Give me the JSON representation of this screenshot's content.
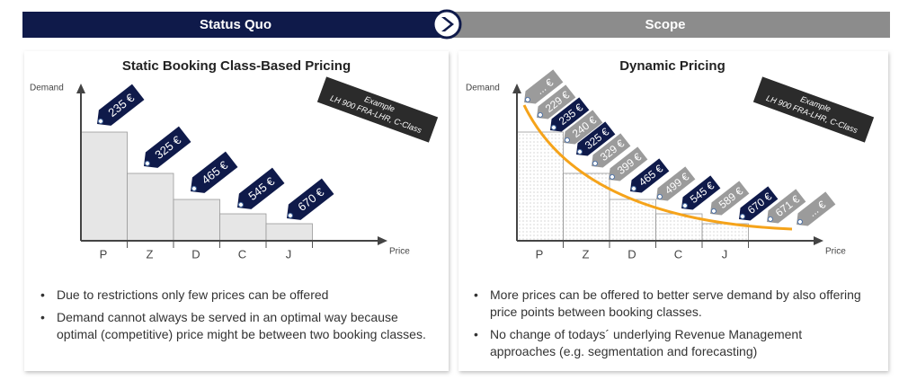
{
  "header": {
    "left": "Status Quo",
    "right": "Scope"
  },
  "left": {
    "title": "Static Booking Class-Based Pricing",
    "y_label": "Demand",
    "x_label": "Price",
    "categories": [
      "P",
      "Z",
      "D",
      "C",
      "J"
    ],
    "example": [
      "Example",
      "LH 900  FRA-LHR, C-Class"
    ],
    "tags": [
      {
        "label": "235 €",
        "color": "#0f1a4a"
      },
      {
        "label": "325 €",
        "color": "#0f1a4a"
      },
      {
        "label": "465 €",
        "color": "#0f1a4a"
      },
      {
        "label": "545 €",
        "color": "#0f1a4a"
      },
      {
        "label": "670 €",
        "color": "#0f1a4a"
      }
    ],
    "bullets": [
      "Due to restrictions only few prices can be offered",
      "Demand cannot always be served in an optimal way because optimal (competitive) price might be between two booking classes."
    ]
  },
  "right": {
    "title": "Dynamic Pricing",
    "y_label": "Demand",
    "x_label": "Price",
    "categories": [
      "P",
      "Z",
      "D",
      "C",
      "J"
    ],
    "example": [
      "Example",
      "LH 900  FRA-LHR, C-Class"
    ],
    "tags": [
      {
        "label": "... €",
        "color": "#9b9b9b"
      },
      {
        "label": "229 €",
        "color": "#9b9b9b"
      },
      {
        "label": "235 €",
        "color": "#0f1a4a"
      },
      {
        "label": "240 €",
        "color": "#9b9b9b"
      },
      {
        "label": "325 €",
        "color": "#0f1a4a"
      },
      {
        "label": "329 €",
        "color": "#9b9b9b"
      },
      {
        "label": "399 €",
        "color": "#9b9b9b"
      },
      {
        "label": "465 €",
        "color": "#0f1a4a"
      },
      {
        "label": "499 €",
        "color": "#9b9b9b"
      },
      {
        "label": "545 €",
        "color": "#0f1a4a"
      },
      {
        "label": "589 €",
        "color": "#9b9b9b"
      },
      {
        "label": "670 €",
        "color": "#0f1a4a"
      },
      {
        "label": "671 €",
        "color": "#9b9b9b"
      },
      {
        "label": "... €",
        "color": "#9b9b9b"
      }
    ],
    "bullets": [
      "More prices can be offered to better serve demand by also offering price points between booking classes.",
      "No change of todays´ underlying Revenue Management approaches (e.g. segmentation and forecasting)"
    ]
  }
}
